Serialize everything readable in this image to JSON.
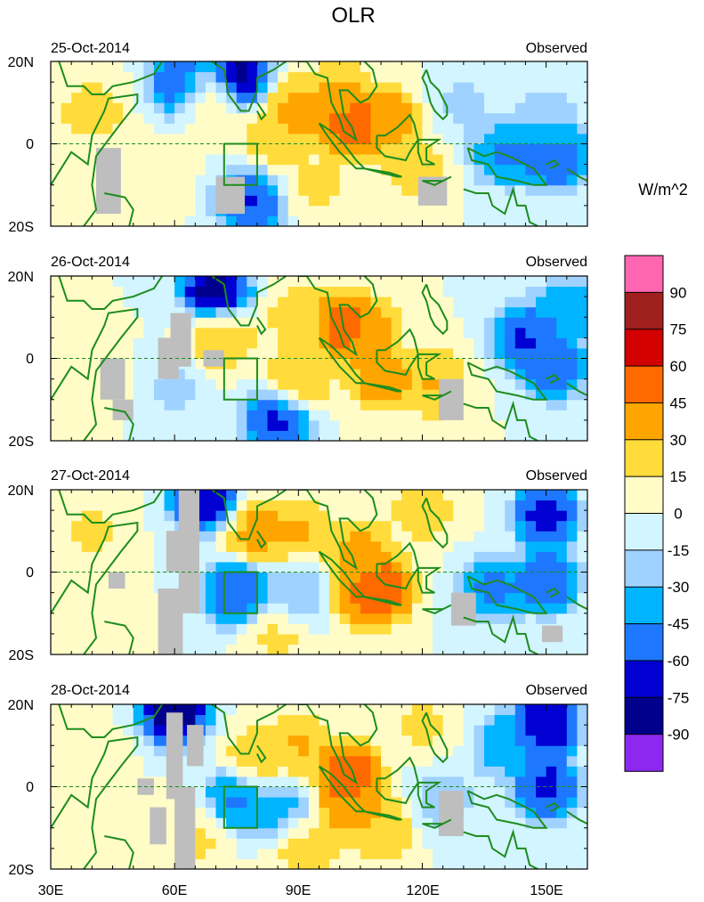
{
  "chart_data": {
    "type": "heatmap",
    "title": "OLR",
    "variable": "OLR anomaly",
    "units": "W/m^2",
    "x_range": [
      30,
      160
    ],
    "y_range": [
      -20,
      20
    ],
    "x_ticks": [
      {
        "value": 30,
        "label": "30E"
      },
      {
        "value": 60,
        "label": "60E"
      },
      {
        "value": 90,
        "label": "90E"
      },
      {
        "value": 120,
        "label": "120E"
      },
      {
        "value": 150,
        "label": "150E"
      }
    ],
    "y_ticks": [
      {
        "value": 20,
        "label": "20N"
      },
      {
        "value": 0,
        "label": "0"
      },
      {
        "value": -20,
        "label": "20S"
      }
    ],
    "colorbar": {
      "label": "W/m^2",
      "levels": [
        "90",
        "75",
        "60",
        "45",
        "30",
        "15",
        "0",
        "-15",
        "-30",
        "-45",
        "-60",
        "-75",
        "-90"
      ],
      "colors": [
        "#ff66b2",
        "#a02020",
        "#d20000",
        "#ff6a00",
        "#ffa500",
        "#ffdc3c",
        "#fffcc8",
        "#d2f5ff",
        "#a0d2ff",
        "#00b4ff",
        "#1e78ff",
        "#0000d2",
        "#00008c",
        "#8c28f0"
      ]
    },
    "box_region": {
      "lon": [
        72,
        80
      ],
      "lat": [
        -10,
        0
      ]
    },
    "panels": [
      {
        "date": "25-Oct-2014",
        "label": "Observed",
        "anomalies": [
          {
            "lon": 75,
            "lat": 17,
            "value": -95
          },
          {
            "lon": 62,
            "lat": 15,
            "value": -70
          },
          {
            "lon": 68,
            "lat": 12,
            "value": 20
          },
          {
            "lon": 90,
            "lat": 8,
            "value": 40
          },
          {
            "lon": 100,
            "lat": 13,
            "value": 35
          },
          {
            "lon": 103,
            "lat": 5,
            "value": 65
          },
          {
            "lon": 112,
            "lat": 6,
            "value": 45
          },
          {
            "lon": 85,
            "lat": 2,
            "value": 30
          },
          {
            "lon": 140,
            "lat": -2,
            "value": -55
          },
          {
            "lon": 152,
            "lat": -3,
            "value": -70
          },
          {
            "lon": 150,
            "lat": 5,
            "value": -30
          },
          {
            "lon": 78,
            "lat": -14,
            "value": -70
          },
          {
            "lon": 40,
            "lat": 8,
            "value": 25
          },
          {
            "lon": 95,
            "lat": -10,
            "value": 20
          },
          {
            "lon": 118,
            "lat": -6,
            "value": 25
          },
          {
            "lon": 55,
            "lat": -8,
            "value": 15
          },
          {
            "lon": 130,
            "lat": 10,
            "value": -20
          }
        ]
      },
      {
        "date": "26-Oct-2014",
        "label": "Observed",
        "anomalies": [
          {
            "lon": 70,
            "lat": 17,
            "value": -95
          },
          {
            "lon": 101,
            "lat": 8,
            "value": 65
          },
          {
            "lon": 107,
            "lat": 6,
            "value": 40
          },
          {
            "lon": 90,
            "lat": -5,
            "value": 35
          },
          {
            "lon": 110,
            "lat": -5,
            "value": 45
          },
          {
            "lon": 123,
            "lat": -6,
            "value": 35
          },
          {
            "lon": 85,
            "lat": -15,
            "value": -75
          },
          {
            "lon": 145,
            "lat": 5,
            "value": -70
          },
          {
            "lon": 152,
            "lat": -2,
            "value": -65
          },
          {
            "lon": 155,
            "lat": 12,
            "value": -50
          },
          {
            "lon": 72,
            "lat": 5,
            "value": 30
          },
          {
            "lon": 90,
            "lat": 10,
            "value": 25
          },
          {
            "lon": 60,
            "lat": -8,
            "value": -20
          },
          {
            "lon": 40,
            "lat": -5,
            "value": 10
          }
        ]
      },
      {
        "date": "27-Oct-2014",
        "label": "Observed",
        "anomalies": [
          {
            "lon": 67,
            "lat": 18,
            "value": -85
          },
          {
            "lon": 110,
            "lat": -4,
            "value": 65
          },
          {
            "lon": 105,
            "lat": -5,
            "value": 50
          },
          {
            "lon": 105,
            "lat": 5,
            "value": 40
          },
          {
            "lon": 75,
            "lat": -5,
            "value": -70
          },
          {
            "lon": 90,
            "lat": 10,
            "value": 35
          },
          {
            "lon": 80,
            "lat": 10,
            "value": 40
          },
          {
            "lon": 150,
            "lat": 14,
            "value": -75
          },
          {
            "lon": 150,
            "lat": -2,
            "value": -65
          },
          {
            "lon": 137,
            "lat": -4,
            "value": -55
          },
          {
            "lon": 90,
            "lat": -5,
            "value": -35
          },
          {
            "lon": 40,
            "lat": 10,
            "value": 20
          },
          {
            "lon": 40,
            "lat": -10,
            "value": 10
          },
          {
            "lon": 120,
            "lat": 15,
            "value": 25
          },
          {
            "lon": 85,
            "lat": -15,
            "value": 20
          }
        ]
      },
      {
        "date": "28-Oct-2014",
        "label": "Observed",
        "anomalies": [
          {
            "lon": 60,
            "lat": 18,
            "value": -95
          },
          {
            "lon": 150,
            "lat": 15,
            "value": -85
          },
          {
            "lon": 150,
            "lat": 0,
            "value": -75
          },
          {
            "lon": 140,
            "lat": 10,
            "value": -45
          },
          {
            "lon": 102,
            "lat": 3,
            "value": 65
          },
          {
            "lon": 103,
            "lat": -5,
            "value": 45
          },
          {
            "lon": 90,
            "lat": 10,
            "value": 35
          },
          {
            "lon": 80,
            "lat": 7,
            "value": 30
          },
          {
            "lon": 75,
            "lat": -3,
            "value": -55
          },
          {
            "lon": 85,
            "lat": -5,
            "value": -40
          },
          {
            "lon": 110,
            "lat": -10,
            "value": 30
          },
          {
            "lon": 40,
            "lat": 5,
            "value": 15
          },
          {
            "lon": 120,
            "lat": 15,
            "value": 20
          },
          {
            "lon": 65,
            "lat": -12,
            "value": 20
          },
          {
            "lon": 92,
            "lat": -15,
            "value": 25
          },
          {
            "lon": 125,
            "lat": -3,
            "value": -25
          }
        ]
      }
    ]
  }
}
